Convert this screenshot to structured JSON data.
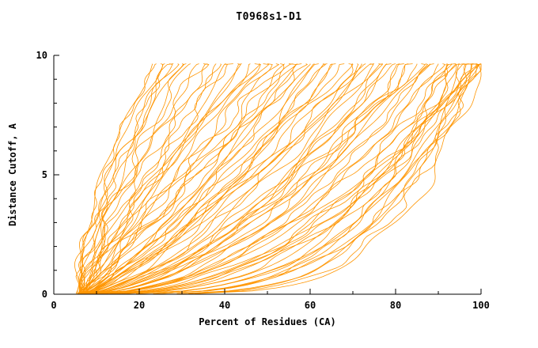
{
  "chart_data": {
    "type": "line",
    "title": "T0968s1-D1",
    "xlabel": "Percent of Residues (CA)",
    "ylabel": "Distance Cutoff, A",
    "xlim": [
      0,
      100
    ],
    "ylim": [
      0,
      10
    ],
    "xticks": {
      "major": [
        0,
        20,
        40,
        60,
        80,
        100
      ],
      "minor": [
        10,
        30,
        50,
        70,
        90
      ]
    },
    "yticks": {
      "major": [
        0,
        5,
        10
      ],
      "minor": [
        1,
        2,
        3,
        4,
        6,
        7,
        8,
        9
      ]
    },
    "grid": false,
    "legend": "none",
    "line_color": "#ff9500",
    "axis_color": "#000000",
    "background": "#ffffff",
    "curve_y_max": 9.65,
    "curve_format": "Each curve is one model's cumulative distance plot, estimated as [x_at_bottom_percent, x_at_top_percent, shape_exponent] with x(y) = x0 + (x1 - x0) * (y/ymax)^p",
    "curves": [
      [
        5.5,
        23,
        1.6
      ],
      [
        6,
        25,
        1.5
      ],
      [
        6.5,
        27,
        1.4
      ],
      [
        5.8,
        29,
        1.7
      ],
      [
        7,
        31,
        1.3
      ],
      [
        6.2,
        24,
        1.8
      ],
      [
        5.2,
        26,
        1.2
      ],
      [
        6.8,
        30,
        1.5
      ],
      [
        7.5,
        32,
        1.35
      ],
      [
        5.9,
        28,
        1.55
      ],
      [
        6,
        34,
        1.2
      ],
      [
        6.5,
        36,
        1.0
      ],
      [
        7,
        38,
        1.3
      ],
      [
        5.5,
        40,
        0.95
      ],
      [
        6.2,
        42,
        1.15
      ],
      [
        7.2,
        44,
        1.05
      ],
      [
        5.8,
        46,
        0.9
      ],
      [
        6.6,
        48,
        1.25
      ],
      [
        7.4,
        50,
        1.0
      ],
      [
        6.1,
        35,
        1.4
      ],
      [
        6.9,
        39,
        1.1
      ],
      [
        5.6,
        43,
        0.98
      ],
      [
        7.1,
        47,
        1.18
      ],
      [
        6.4,
        49,
        0.92
      ],
      [
        6,
        52,
        0.85
      ],
      [
        6.5,
        54,
        0.75
      ],
      [
        7,
        56,
        0.95
      ],
      [
        5.5,
        58,
        0.7
      ],
      [
        6.3,
        60,
        0.88
      ],
      [
        7.3,
        62,
        0.65
      ],
      [
        5.9,
        64,
        0.8
      ],
      [
        6.7,
        66,
        0.72
      ],
      [
        7.5,
        68,
        0.9
      ],
      [
        6.2,
        70,
        0.6
      ],
      [
        5.7,
        53,
        1.05
      ],
      [
        6.8,
        57,
        0.78
      ],
      [
        7.2,
        61,
        0.82
      ],
      [
        6.0,
        65,
        0.68
      ],
      [
        6.6,
        69,
        0.75
      ],
      [
        5.4,
        55,
        0.9
      ],
      [
        7.0,
        63,
        0.7
      ],
      [
        6.3,
        59,
        1.0
      ],
      [
        6,
        72,
        0.6
      ],
      [
        6.5,
        74,
        0.5
      ],
      [
        7,
        76,
        0.7
      ],
      [
        5.5,
        78,
        0.55
      ],
      [
        6.2,
        80,
        0.65
      ],
      [
        7.2,
        82,
        0.48
      ],
      [
        5.8,
        84,
        0.58
      ],
      [
        6.6,
        86,
        0.52
      ],
      [
        7.4,
        88,
        0.62
      ],
      [
        6.1,
        73,
        0.75
      ],
      [
        6.9,
        77,
        0.57
      ],
      [
        5.6,
        81,
        0.5
      ],
      [
        7.1,
        85,
        0.66
      ],
      [
        6.4,
        87,
        0.46
      ],
      [
        5.9,
        75,
        0.8
      ],
      [
        6.7,
        79,
        0.6
      ],
      [
        7.3,
        83,
        0.55
      ],
      [
        6.2,
        71,
        0.72
      ],
      [
        6,
        90,
        0.45
      ],
      [
        6.5,
        92,
        0.38
      ],
      [
        7,
        94,
        0.5
      ],
      [
        5.5,
        96,
        0.35
      ],
      [
        6.2,
        98,
        0.42
      ],
      [
        7.2,
        100,
        0.33
      ],
      [
        5.8,
        91,
        0.48
      ],
      [
        6.6,
        93,
        0.4
      ],
      [
        7.4,
        95,
        0.36
      ],
      [
        6.1,
        97,
        0.44
      ],
      [
        6.9,
        99,
        0.32
      ],
      [
        5.6,
        100,
        0.5
      ],
      [
        7.1,
        89,
        0.55
      ],
      [
        6.4,
        94,
        0.3
      ],
      [
        5.9,
        98,
        0.38
      ],
      [
        6.7,
        100,
        0.42
      ],
      [
        6,
        92,
        0.25
      ],
      [
        6.5,
        96,
        0.22
      ],
      [
        7,
        99,
        0.28
      ],
      [
        5.5,
        100,
        0.2
      ],
      [
        6.3,
        94,
        0.26
      ],
      [
        7.1,
        97,
        0.23
      ],
      [
        5.8,
        100,
        0.27
      ],
      [
        6.6,
        98,
        0.21
      ]
    ]
  }
}
